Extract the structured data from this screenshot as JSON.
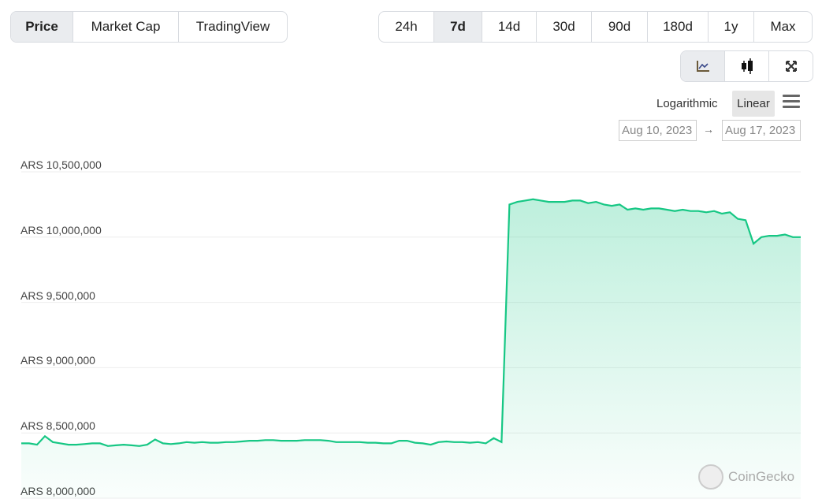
{
  "tabs": [
    {
      "label": "Price",
      "active": true
    },
    {
      "label": "Market Cap"
    },
    {
      "label": "TradingView"
    }
  ],
  "ranges": [
    {
      "label": "24h"
    },
    {
      "label": "7d",
      "active": true
    },
    {
      "label": "14d"
    },
    {
      "label": "30d"
    },
    {
      "label": "90d"
    },
    {
      "label": "180d"
    },
    {
      "label": "1y"
    },
    {
      "label": "Max"
    }
  ],
  "views": [
    {
      "icon": "line-chart-icon",
      "active": true
    },
    {
      "icon": "candlestick-icon"
    },
    {
      "icon": "fullscreen-icon"
    }
  ],
  "scale": {
    "logarithmic": "Logarithmic",
    "linear": "Linear",
    "selected": "Linear"
  },
  "date_range": {
    "from": "Aug 10, 2023",
    "arrow": "→",
    "to": "Aug 17, 2023"
  },
  "watermark": "CoinGecko",
  "chart_data": {
    "type": "area",
    "currency": "ARS",
    "ylim": [
      8000000,
      10500000
    ],
    "yticks": [
      "ARS 10,500,000",
      "ARS 10,000,000",
      "ARS 9,500,000",
      "ARS 9,000,000",
      "ARS 8,500,000",
      "ARS 8,000,000"
    ],
    "ytick_values": [
      10500000,
      10000000,
      9500000,
      9000000,
      8500000,
      8000000
    ],
    "x_range": [
      "Aug 10, 2023",
      "Aug 17, 2023"
    ],
    "grid": true,
    "color": "#16c784",
    "values": [
      8420000,
      8420000,
      8410000,
      8475000,
      8430000,
      8420000,
      8410000,
      8410000,
      8415000,
      8420000,
      8420000,
      8400000,
      8405000,
      8410000,
      8405000,
      8400000,
      8410000,
      8450000,
      8420000,
      8415000,
      8420000,
      8430000,
      8425000,
      8430000,
      8425000,
      8425000,
      8430000,
      8430000,
      8435000,
      8440000,
      8440000,
      8445000,
      8445000,
      8440000,
      8440000,
      8440000,
      8445000,
      8445000,
      8445000,
      8440000,
      8430000,
      8430000,
      8430000,
      8430000,
      8425000,
      8425000,
      8420000,
      8420000,
      8440000,
      8440000,
      8425000,
      8420000,
      8410000,
      8430000,
      8435000,
      8430000,
      8430000,
      8425000,
      8430000,
      8420000,
      8460000,
      8430000,
      10250000,
      10270000,
      10280000,
      10290000,
      10280000,
      10270000,
      10270000,
      10270000,
      10280000,
      10280000,
      10260000,
      10270000,
      10250000,
      10240000,
      10250000,
      10210000,
      10220000,
      10210000,
      10220000,
      10220000,
      10210000,
      10200000,
      10210000,
      10200000,
      10200000,
      10190000,
      10200000,
      10180000,
      10190000,
      10140000,
      10130000,
      9950000,
      10000000,
      10010000,
      10010000,
      10020000,
      10000000,
      10000000
    ]
  }
}
